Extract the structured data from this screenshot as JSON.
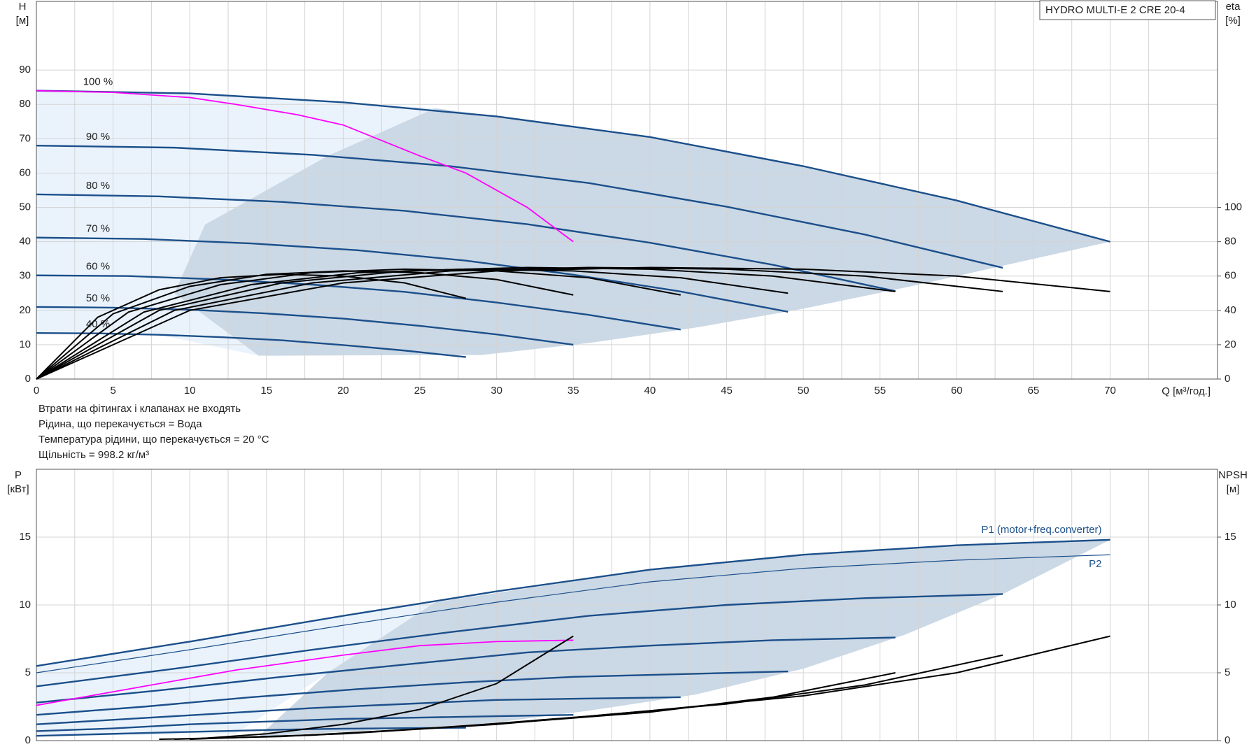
{
  "chart_data": [
    {
      "type": "line",
      "title": "HYDRO MULTI-E 2 CRE 20-4",
      "y_label": "H",
      "y_unit": "[м]",
      "y2_label": "eta",
      "y2_unit": "[%]",
      "x_label": "Q [м³/год.]",
      "xlim": [
        0,
        77
      ],
      "xticks": [
        0,
        5,
        10,
        15,
        20,
        25,
        30,
        35,
        40,
        45,
        50,
        55,
        60,
        65,
        70
      ],
      "ylim": [
        0,
        110
      ],
      "yticks": [
        0,
        10,
        20,
        30,
        40,
        50,
        60,
        70,
        80,
        90
      ],
      "y2lim": [
        0,
        220
      ],
      "y2ticks": [
        0,
        20,
        40,
        60,
        80,
        100
      ],
      "grid": true,
      "series": [
        {
          "name": "100 %",
          "color": "#1b4f8a",
          "x": [
            0,
            10,
            20,
            30,
            40,
            50,
            60,
            70
          ],
          "values": [
            84,
            83.2,
            80.6,
            76.5,
            70.5,
            62,
            52,
            40
          ]
        },
        {
          "name": "90 %",
          "color": "#1b4f8a",
          "x": [
            0,
            9,
            18,
            27,
            36,
            45,
            54,
            63
          ],
          "values": [
            68,
            67.4,
            65.3,
            62,
            57.1,
            50.2,
            42.1,
            32.4
          ]
        },
        {
          "name": "80 %",
          "color": "#1b4f8a",
          "x": [
            0,
            8,
            16,
            24,
            32,
            40,
            48,
            56
          ],
          "values": [
            53.8,
            53.2,
            51.6,
            49,
            45.1,
            39.7,
            33.3,
            25.6
          ]
        },
        {
          "name": "70 %",
          "color": "#1b4f8a",
          "x": [
            0,
            7,
            14,
            21,
            28,
            35,
            42,
            49
          ],
          "values": [
            41.2,
            40.8,
            39.5,
            37.5,
            34.5,
            30.4,
            25.5,
            19.6
          ]
        },
        {
          "name": "60 %",
          "color": "#1b4f8a",
          "x": [
            0,
            6,
            12,
            18,
            24,
            30,
            36,
            42
          ],
          "values": [
            30.2,
            30,
            29,
            27.5,
            25.4,
            22.3,
            18.7,
            14.4
          ]
        },
        {
          "name": "50 %",
          "color": "#1b4f8a",
          "x": [
            0,
            5,
            10,
            15,
            20,
            25,
            30,
            35
          ],
          "values": [
            21,
            20.8,
            20.2,
            19.1,
            17.6,
            15.5,
            13,
            10
          ]
        },
        {
          "name": "40 %",
          "color": "#1b4f8a",
          "x": [
            0,
            4,
            8,
            12,
            16,
            20,
            24,
            28
          ],
          "values": [
            13.4,
            13.3,
            12.9,
            12.2,
            11.3,
            9.9,
            8.3,
            6.4
          ]
        },
        {
          "color": "#ff00ff",
          "x": [
            0,
            5,
            10,
            13,
            17,
            20,
            25,
            28,
            32,
            35
          ],
          "values": [
            84,
            83.5,
            82,
            80,
            77,
            74,
            65,
            60,
            50,
            40
          ]
        },
        {
          "color": "#000000",
          "axis": "y2",
          "x": [
            0,
            10,
            20,
            30,
            40,
            50,
            60,
            70
          ],
          "values": [
            0,
            40,
            56,
            63,
            65,
            64,
            60,
            51
          ]
        },
        {
          "color": "#000000",
          "axis": "y2",
          "x": [
            0,
            9,
            18,
            27,
            36,
            45,
            54,
            63
          ],
          "values": [
            0,
            40,
            56,
            63,
            65,
            64,
            60,
            51
          ]
        },
        {
          "color": "#000000",
          "axis": "y2",
          "x": [
            0,
            8,
            16,
            24,
            32,
            40,
            48,
            56
          ],
          "values": [
            0,
            40,
            56,
            63,
            65,
            64,
            60,
            51
          ]
        },
        {
          "color": "#000000",
          "axis": "y2",
          "x": [
            0,
            7,
            14,
            21,
            28,
            35,
            42,
            49
          ],
          "values": [
            0,
            39,
            55,
            62,
            64,
            63,
            59,
            50
          ]
        },
        {
          "color": "#000000",
          "axis": "y2",
          "x": [
            0,
            6,
            12,
            18,
            24,
            30,
            36,
            42
          ],
          "values": [
            0,
            39,
            55,
            62,
            64,
            63,
            59,
            49
          ]
        },
        {
          "color": "#000000",
          "axis": "y2",
          "x": [
            0,
            5,
            10,
            15,
            20,
            25,
            30,
            35
          ],
          "values": [
            0,
            38,
            54,
            61,
            63,
            62,
            58,
            49
          ]
        },
        {
          "color": "#000000",
          "axis": "y2",
          "x": [
            0,
            4,
            8,
            12,
            16,
            20,
            24,
            28
          ],
          "values": [
            0,
            36,
            52,
            59,
            61,
            60,
            56,
            47
          ]
        }
      ],
      "annotations": [
        "Втрати на фітингах і клапанах не входять",
        "Рідина, що перекачується = Вода",
        "Температура рідини, що перекачується = 20 °C",
        "Щільність = 998.2 кг/м³"
      ]
    },
    {
      "type": "line",
      "y_label": "P",
      "y_unit": "[кВт]",
      "y2_label": "NPSH",
      "y2_unit": "[м]",
      "xlim": [
        0,
        77
      ],
      "xticks": [
        0,
        5,
        10,
        15,
        20,
        25,
        30,
        35,
        40,
        45,
        50,
        55,
        60,
        65,
        70
      ],
      "ylim": [
        0,
        20
      ],
      "yticks": [
        0,
        5,
        10,
        15
      ],
      "y2lim": [
        0,
        20
      ],
      "y2ticks": [
        0,
        5,
        10,
        15
      ],
      "grid": true,
      "series": [
        {
          "name": "P1 (motor+freq.converter)",
          "color": "#1b4f8a",
          "x": [
            0,
            10,
            20,
            30,
            40,
            50,
            60,
            70
          ],
          "values": [
            5.5,
            7.3,
            9.2,
            11,
            12.6,
            13.7,
            14.4,
            14.8
          ]
        },
        {
          "name": "P2",
          "color": "#1b4f8a",
          "x": [
            0,
            10,
            20,
            30,
            40,
            50,
            60,
            70
          ],
          "values": [
            5,
            6.7,
            8.5,
            10.2,
            11.7,
            12.7,
            13.3,
            13.7
          ]
        },
        {
          "color": "#1b4f8a",
          "x": [
            0,
            9,
            18,
            27,
            36,
            45,
            54,
            63
          ],
          "values": [
            4,
            5.3,
            6.7,
            8,
            9.2,
            10,
            10.5,
            10.8
          ]
        },
        {
          "color": "#1b4f8a",
          "x": [
            0,
            8,
            16,
            24,
            32,
            40,
            48,
            56
          ],
          "values": [
            2.8,
            3.7,
            4.7,
            5.6,
            6.5,
            7,
            7.4,
            7.6
          ]
        },
        {
          "color": "#1b4f8a",
          "x": [
            0,
            7,
            14,
            21,
            28,
            35,
            42,
            49
          ],
          "values": [
            1.9,
            2.5,
            3.2,
            3.8,
            4.3,
            4.7,
            4.9,
            5.1
          ]
        },
        {
          "color": "#1b4f8a",
          "x": [
            0,
            6,
            12,
            18,
            24,
            30,
            36,
            42
          ],
          "values": [
            1.2,
            1.6,
            2,
            2.4,
            2.7,
            3,
            3.1,
            3.2
          ]
        },
        {
          "color": "#1b4f8a",
          "x": [
            0,
            5,
            10,
            15,
            20,
            25,
            30,
            35
          ],
          "values": [
            0.7,
            0.9,
            1.2,
            1.4,
            1.6,
            1.7,
            1.8,
            1.9
          ]
        },
        {
          "color": "#1b4f8a",
          "x": [
            0,
            4,
            8,
            12,
            16,
            20,
            24,
            28
          ],
          "values": [
            0.35,
            0.47,
            0.59,
            0.7,
            0.81,
            0.88,
            0.92,
            0.95
          ]
        },
        {
          "color": "#ff00ff",
          "x": [
            0,
            13,
            20,
            25,
            30,
            35
          ],
          "values": [
            2.6,
            5.2,
            6.3,
            7,
            7.3,
            7.4
          ]
        },
        {
          "color": "#000000",
          "axis": "y2",
          "x": [
            10,
            20,
            30,
            40,
            50,
            60,
            70
          ],
          "values": [
            0.1,
            0.5,
            1.2,
            2.2,
            3.3,
            5,
            7.7
          ]
        },
        {
          "color": "#000000",
          "axis": "y2",
          "x": [
            9,
            18,
            27,
            36,
            45,
            54,
            63
          ],
          "values": [
            0.1,
            0.4,
            1,
            1.8,
            2.7,
            4.1,
            6.3
          ]
        },
        {
          "color": "#000000",
          "axis": "y2",
          "x": [
            8,
            16,
            24,
            32,
            40,
            48,
            56
          ],
          "values": [
            0.1,
            0.3,
            0.8,
            1.4,
            2.1,
            3.2,
            5
          ]
        },
        {
          "color": "#000000",
          "axis": "y2",
          "x": [
            10,
            15,
            20,
            25,
            30,
            35
          ],
          "values": [
            0.1,
            0.5,
            1.2,
            2.3,
            4.2,
            7.7
          ]
        }
      ]
    }
  ]
}
